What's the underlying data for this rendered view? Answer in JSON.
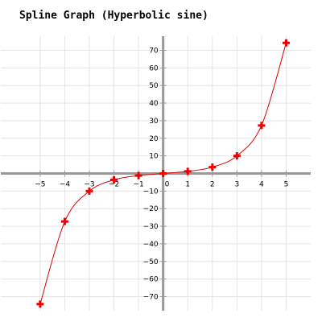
{
  "chart_data": {
    "type": "line",
    "title": "Spline Graph (Hyperbolic sine)",
    "xlabel": "",
    "ylabel": "",
    "xlim": [
      -6.6,
      6.0
    ],
    "ylim": [
      -78,
      78
    ],
    "x_ticks": [
      -5,
      -4,
      -3,
      -2,
      -1,
      0,
      1,
      2,
      3,
      4,
      5
    ],
    "y_ticks": [
      -70,
      -60,
      -50,
      -40,
      -30,
      -20,
      -10,
      0,
      10,
      20,
      30,
      40,
      50,
      60,
      70
    ],
    "grid": true,
    "legend": "none",
    "line_style": "spline",
    "series": [
      {
        "x": [
          -5,
          -4,
          -3,
          -2,
          -1,
          0,
          1,
          2,
          3,
          4,
          5
        ],
        "values": [
          -74.2,
          -27.29,
          -10.02,
          -3.63,
          -1.18,
          0,
          1.18,
          3.63,
          10.02,
          27.29,
          74.2
        ],
        "marker": "plus"
      }
    ],
    "colors": {
      "line": "#dd0000",
      "marker": "#ee0000",
      "axis": "#999999",
      "grid": "#e4e4e4"
    }
  }
}
